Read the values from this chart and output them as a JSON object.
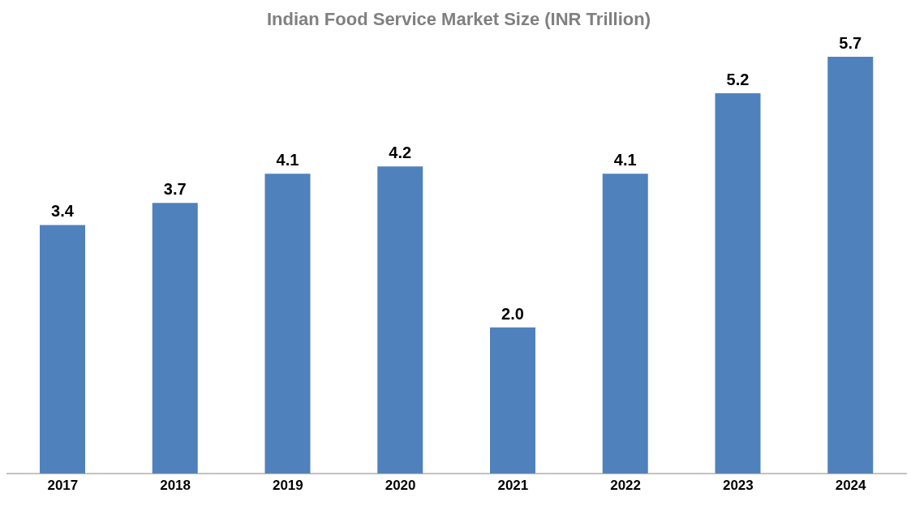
{
  "chart_data": {
    "type": "bar",
    "title": "Indian Food Service Market Size (INR Trillion)",
    "categories": [
      "2017",
      "2018",
      "2019",
      "2020",
      "2021",
      "2022",
      "2023",
      "2024"
    ],
    "values": [
      3.4,
      3.7,
      4.1,
      4.2,
      2.0,
      4.1,
      5.2,
      5.7
    ],
    "value_labels": [
      "3.4",
      "3.7",
      "4.1",
      "4.2",
      "2.0",
      "4.1",
      "5.2",
      "5.7"
    ],
    "color": "#4f81bd",
    "grid": false,
    "legend": false
  }
}
